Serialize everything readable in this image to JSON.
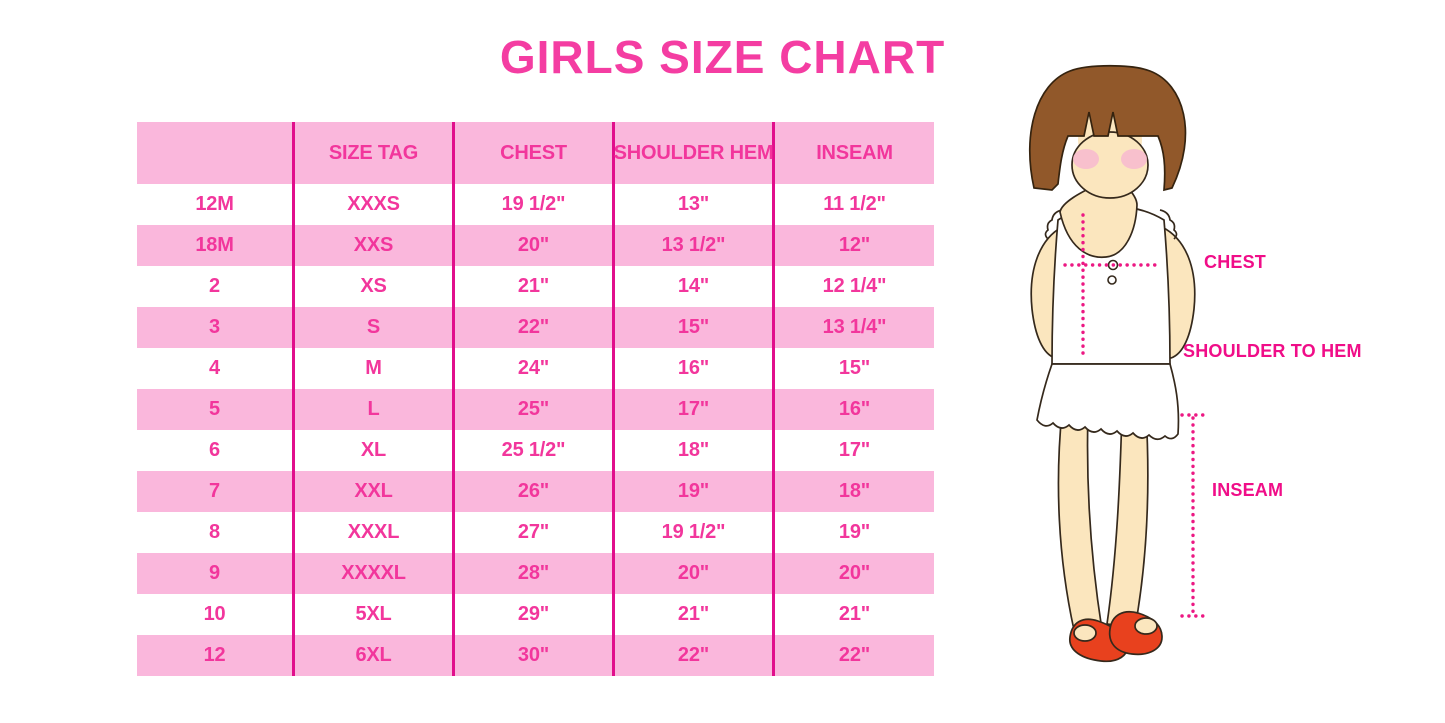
{
  "title": "GIRLS SIZE CHART",
  "table": {
    "headers": [
      "",
      "SIZE TAG",
      "CHEST",
      "SHOULDER HEM",
      "INSEAM"
    ],
    "rows": [
      [
        "12M",
        "XXXS",
        "19 1/2\"",
        "13\"",
        "11 1/2\""
      ],
      [
        "18M",
        "XXS",
        "20\"",
        "13 1/2\"",
        "12\""
      ],
      [
        "2",
        "XS",
        "21\"",
        "14\"",
        "12 1/4\""
      ],
      [
        "3",
        "S",
        "22\"",
        "15\"",
        "13 1/4\""
      ],
      [
        "4",
        "M",
        "24\"",
        "16\"",
        "15\""
      ],
      [
        "5",
        "L",
        "25\"",
        "17\"",
        "16\""
      ],
      [
        "6",
        "XL",
        "25 1/2\"",
        "18\"",
        "17\""
      ],
      [
        "7",
        "XXL",
        "26\"",
        "19\"",
        "18\""
      ],
      [
        "8",
        "XXXL",
        "27\"",
        "19 1/2\"",
        "19\""
      ],
      [
        "9",
        "XXXXL",
        "28\"",
        "20\"",
        "20\""
      ],
      [
        "10",
        "5XL",
        "29\"",
        "21\"",
        "21\""
      ],
      [
        "12",
        "6XL",
        "30\"",
        "22\"",
        "22\""
      ]
    ]
  },
  "figure": {
    "labels": {
      "chest": "CHEST",
      "shoulder_to_hem": "SHOULDER TO HEM",
      "inseam": "INSEAM"
    }
  },
  "colors": {
    "title_pink": "#F43DA2",
    "table_text_pink": "#F2369C",
    "row_pink": "#FAB7DC",
    "grid_line_magenta": "#E10E8C",
    "label_magenta": "#F00D88",
    "dotted_line_pink": "#EC1883",
    "hair_brown": "#91582A",
    "skin": "#FBE6BE",
    "blush": "#F7BBCE",
    "shoe_red": "#E8411E"
  }
}
